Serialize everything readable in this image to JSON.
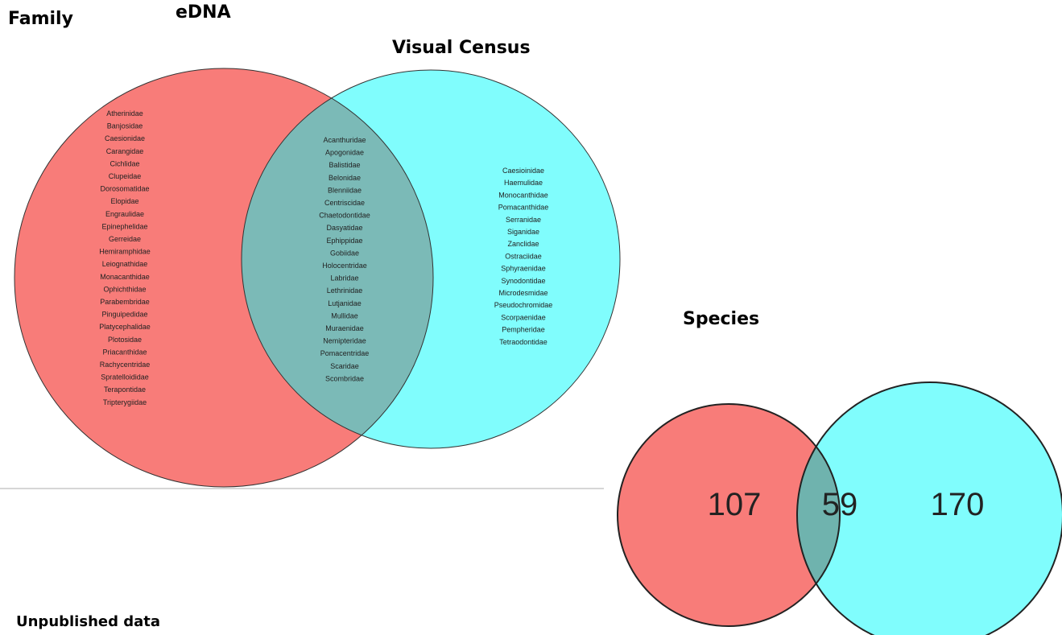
{
  "labels": {
    "family": "Family",
    "edna": "eDNA",
    "visual": "Visual Census",
    "species": "Species",
    "note": "Unpublished data"
  },
  "family": {
    "edna_only": [
      "Atherinidae",
      "Banjosidae",
      "Caesionidae",
      "Carangidae",
      "Cichlidae",
      "Clupeidae",
      "Dorosomatidae",
      "Elopidae",
      "Engraulidae",
      "Epinephelidae",
      "Gerreidae",
      "Hemiramphidae",
      "Leiognathidae",
      "Monacanthidae",
      "Ophichthidae",
      "Parabembridae",
      "Pinguipedidae",
      "Platycephalidae",
      "Plotosidae",
      "Priacanthidae",
      "Rachycentridae",
      "Spratelloididae",
      "Terapontidae",
      "Tripterygiidae"
    ],
    "shared": [
      "Acanthuridae",
      "Apogonidae",
      "Balistidae",
      "Belonidae",
      "Blenniidae",
      "Centriscidae",
      "Chaetodontidae",
      "Dasyatidae",
      "Ephippidae",
      "Gobiidae",
      "Holocentridae",
      "Labridae",
      "Lethrinidae",
      "Lutjanidae",
      "Mullidae",
      "Muraenidae",
      "Nemipteridae",
      "Pomacentridae",
      "Scaridae",
      "Scombridae"
    ],
    "visual_only": [
      "Caesioinidae",
      "Haemulidae",
      "Monocanthidae",
      "Pomacanthidae",
      "Serranidae",
      "Siganidae",
      "Zanclidae",
      "Ostraciidae",
      "Sphyraenidae",
      "Synodontidae",
      "Microdesmidae",
      "Pseudochromidae",
      "Scorpaenidae",
      "Pempheridae",
      "Tetraodontidae"
    ]
  },
  "species": {
    "edna_only": "107",
    "shared": "59",
    "visual_only": "170"
  }
}
